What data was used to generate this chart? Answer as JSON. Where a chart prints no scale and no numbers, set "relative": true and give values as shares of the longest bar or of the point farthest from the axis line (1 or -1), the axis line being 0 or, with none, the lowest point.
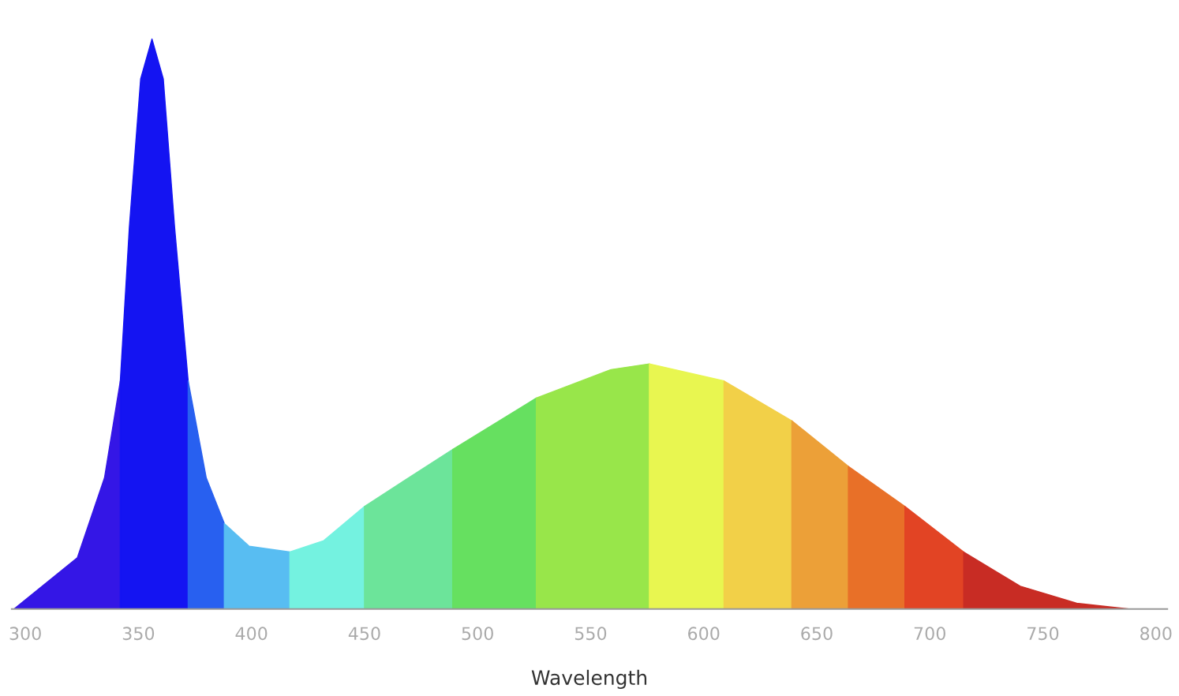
{
  "chart_data": {
    "type": "area",
    "relative": true,
    "xlabel": "Wavelength",
    "xlim": [
      294,
      805
    ],
    "xticks": [
      300,
      350,
      400,
      450,
      500,
      550,
      600,
      650,
      700,
      750,
      800
    ],
    "series": [
      {
        "color": "#3416e6",
        "x": [
          295,
          323,
          335,
          342
        ],
        "values": [
          0,
          0.09,
          0.23,
          0.4
        ]
      },
      {
        "color": "#1414f2",
        "x": [
          342,
          346,
          351,
          356,
          361,
          366,
          372
        ],
        "values": [
          0.4,
          0.67,
          0.93,
          1,
          0.93,
          0.67,
          0.4
        ]
      },
      {
        "color": "#2860f0",
        "x": [
          372,
          380,
          388
        ],
        "values": [
          0.4,
          0.23,
          0.15
        ]
      },
      {
        "color": "#58bdf2",
        "x": [
          388,
          399,
          417
        ],
        "values": [
          0.15,
          0.11,
          0.1
        ]
      },
      {
        "color": "#74f2e0",
        "x": [
          417,
          432,
          450
        ],
        "values": [
          0.1,
          0.12,
          0.18
        ]
      },
      {
        "color": "#6ce49a",
        "x": [
          450,
          489
        ],
        "values": [
          0.18,
          0.28
        ]
      },
      {
        "color": "#66e060",
        "x": [
          489,
          526
        ],
        "values": [
          0.28,
          0.37
        ]
      },
      {
        "color": "#98e64a",
        "x": [
          526,
          559,
          576
        ],
        "values": [
          0.37,
          0.42,
          0.43
        ]
      },
      {
        "color": "#e8f650",
        "x": [
          576,
          609
        ],
        "values": [
          0.43,
          0.4
        ]
      },
      {
        "color": "#f2d048",
        "x": [
          609,
          639
        ],
        "values": [
          0.4,
          0.33
        ]
      },
      {
        "color": "#eca038",
        "x": [
          639,
          664
        ],
        "values": [
          0.33,
          0.25
        ]
      },
      {
        "color": "#e87028",
        "x": [
          664,
          689
        ],
        "values": [
          0.25,
          0.18
        ]
      },
      {
        "color": "#e24424",
        "x": [
          689,
          715
        ],
        "values": [
          0.18,
          0.1
        ]
      },
      {
        "color": "#c82c24",
        "x": [
          715,
          740,
          765,
          788
        ],
        "values": [
          0.1,
          0.04,
          0.01,
          0
        ]
      }
    ]
  }
}
